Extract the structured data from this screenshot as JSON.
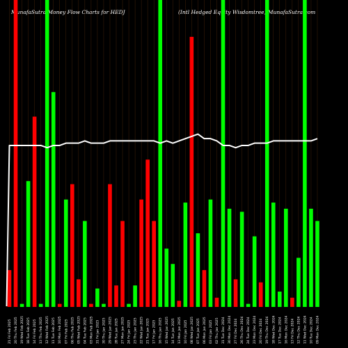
{
  "header": {
    "left": "MunafaSutra  Money Flow  Charts for HEDJ",
    "right": "(Intl Hedged Equity Wisdomtree) MunafaSutra.com"
  },
  "chart_data": {
    "type": "bar",
    "title": "",
    "xlabel": "",
    "ylabel": "",
    "colors": {
      "up": "#00ff00",
      "down": "#ff0000",
      "price_line": "#ffffff",
      "grid": "#b05a1a"
    },
    "ylim": [
      0,
      100
    ],
    "categories": [
      "21 Fri Feb 2025",
      "20 Thu Feb 2025",
      "19 Wed Feb 2025",
      "18 Tue Feb 2025",
      "14 Fri Feb 2025",
      "13 Thu Feb 2025",
      "12 Wed Feb 2025",
      "11 Tue Feb 2025",
      "10 Mon Feb 2025",
      "07 Fri Feb 2025",
      "06 Thu Feb 2025",
      "05 Wed Feb 2025",
      "04 Tue Feb 2025",
      "03 Mon Feb 2025",
      "31 Fri Jan 2025",
      "30 Thu Jan 2025",
      "29 Wed Jan 2025",
      "28 Tue Jan 2025",
      "27 Mon Jan 2025",
      "24 Fri Jan 2025",
      "23 Thu Jan 2025",
      "22 Wed Jan 2025",
      "21 Tue Jan 2025",
      "17 Fri Jan 2025",
      "16 Thu Jan 2025",
      "15 Wed Jan 2025",
      "14 Tue Jan 2025",
      "13 Mon Jan 2025",
      "10 Fri Jan 2025",
      "08 Wed Jan 2025",
      "07 Tue Jan 2025",
      "06 Mon Jan 2025",
      "03 Fri Jan 2025",
      "02 Thu Jan 2025",
      "31 Tue Dec 2024",
      "30 Mon Dec 2024",
      "27 Fri Dec 2024",
      "26 Thu Dec 2024",
      "24 Tue Dec 2024",
      "23 Mon Dec 2024",
      "20 Fri Dec 2024",
      "19 Thu Dec 2024",
      "18 Wed Dec 2024",
      "17 Tue Dec 2024",
      "16 Mon Dec 2024",
      "13 Fri Dec 2024",
      "12 Thu Dec 2024",
      "11 Wed Dec 2024",
      "10 Tue Dec 2024",
      "09 Mon Dec 2024"
    ],
    "series": [
      {
        "values": [
          12,
          100,
          1,
          41,
          62,
          1,
          100,
          70,
          1,
          35,
          40,
          9,
          28,
          1,
          6,
          1,
          40,
          7,
          28,
          1,
          7,
          35,
          48,
          28,
          100,
          19,
          14,
          2,
          34,
          88,
          24,
          12,
          35,
          3,
          100,
          32,
          9,
          31,
          1,
          23,
          8,
          100,
          34,
          5,
          32,
          3,
          16,
          100,
          32,
          28
        ],
        "directions": [
          "down",
          "down",
          "up",
          "up",
          "down",
          "up",
          "up",
          "up",
          "down",
          "up",
          "down",
          "down",
          "up",
          "down",
          "up",
          "up",
          "down",
          "down",
          "down",
          "up",
          "up",
          "down",
          "down",
          "down",
          "up",
          "up",
          "up",
          "down",
          "up",
          "down",
          "up",
          "down",
          "up",
          "down",
          "up",
          "up",
          "down",
          "up",
          "up",
          "up",
          "down",
          "up",
          "up",
          "up",
          "up",
          "down",
          "up",
          "up",
          "up",
          "up"
        ]
      }
    ],
    "price_line": [
      63,
      63,
      63,
      63,
      63,
      63,
      62,
      63,
      63,
      64,
      64,
      64,
      65,
      64,
      64,
      64,
      65,
      65,
      65,
      65,
      65,
      65,
      65,
      65,
      64,
      65,
      64,
      65,
      66,
      67,
      68,
      66,
      66,
      65,
      63,
      63,
      62,
      63,
      63,
      64,
      64,
      64,
      65,
      65,
      65,
      65,
      65,
      65,
      65,
      66
    ]
  }
}
